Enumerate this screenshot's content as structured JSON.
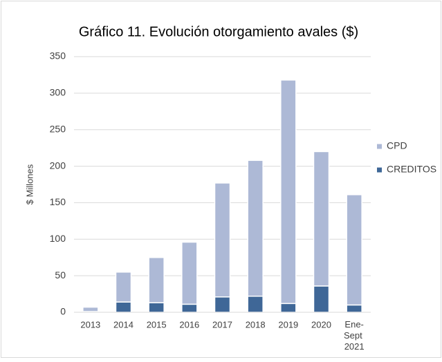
{
  "chart_data": {
    "type": "stacked_bar",
    "title": "Gráfico 11. Evolución otorgamiento avales ($)",
    "y_label": "$ Millones",
    "categories": [
      "2013",
      "2014",
      "2015",
      "2016",
      "2017",
      "2018",
      "2019",
      "2020",
      "Ene-Sept 2021"
    ],
    "series": [
      {
        "name": "CREDITOS",
        "color": "#3f6797",
        "values": [
          1,
          14,
          13,
          11,
          21,
          22,
          12,
          36,
          10
        ]
      },
      {
        "name": "CPD",
        "color": "#adb9d6",
        "values": [
          6,
          41,
          62,
          85,
          156,
          186,
          306,
          184,
          151
        ]
      }
    ],
    "ylim": [
      0,
      350
    ],
    "yticks": [
      0,
      50,
      100,
      150,
      200,
      250,
      300,
      350
    ],
    "grid": true,
    "legend": "right"
  }
}
